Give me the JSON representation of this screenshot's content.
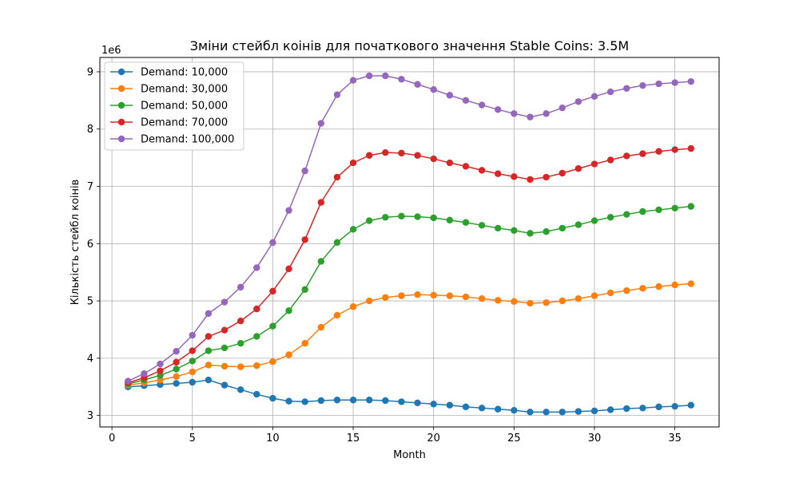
{
  "chart_data": {
    "type": "line",
    "title": "Зміни стейбл коінів для початкового значення Stable Coins: 3.5M",
    "xlabel": "Month",
    "ylabel": "Кількість стейбл коінів",
    "y_scale_label": "1e6",
    "xlim": [
      -0.75,
      37.75
    ],
    "ylim": [
      2.8,
      9.25
    ],
    "x_ticks": [
      0,
      5,
      10,
      15,
      20,
      25,
      30,
      35
    ],
    "y_ticks": [
      3,
      4,
      5,
      6,
      7,
      8,
      9
    ],
    "grid": true,
    "legend_position": "upper-left",
    "x": [
      1,
      2,
      3,
      4,
      5,
      6,
      7,
      8,
      9,
      10,
      11,
      12,
      13,
      14,
      15,
      16,
      17,
      18,
      19,
      20,
      21,
      22,
      23,
      24,
      25,
      26,
      27,
      28,
      29,
      30,
      31,
      32,
      33,
      34,
      35,
      36
    ],
    "series": [
      {
        "name": "Demand: 10,000",
        "color": "#1f77b4",
        "values": [
          3.5,
          3.52,
          3.54,
          3.56,
          3.58,
          3.62,
          3.53,
          3.45,
          3.37,
          3.3,
          3.25,
          3.24,
          3.26,
          3.27,
          3.27,
          3.27,
          3.26,
          3.24,
          3.22,
          3.2,
          3.18,
          3.15,
          3.13,
          3.11,
          3.09,
          3.06,
          3.06,
          3.06,
          3.07,
          3.08,
          3.1,
          3.12,
          3.13,
          3.15,
          3.16,
          3.18
        ]
      },
      {
        "name": "Demand: 30,000",
        "color": "#ff7f0e",
        "values": [
          3.53,
          3.57,
          3.62,
          3.68,
          3.76,
          3.88,
          3.86,
          3.85,
          3.87,
          3.94,
          4.06,
          4.26,
          4.54,
          4.75,
          4.9,
          5.0,
          5.06,
          5.09,
          5.11,
          5.1,
          5.09,
          5.07,
          5.04,
          5.01,
          4.99,
          4.96,
          4.97,
          5.0,
          5.04,
          5.09,
          5.14,
          5.18,
          5.22,
          5.25,
          5.28,
          5.3
        ]
      },
      {
        "name": "Demand: 50,000",
        "color": "#2ca02c",
        "values": [
          3.55,
          3.62,
          3.7,
          3.81,
          3.95,
          4.13,
          4.18,
          4.26,
          4.38,
          4.56,
          4.83,
          5.2,
          5.69,
          6.02,
          6.25,
          6.4,
          6.46,
          6.48,
          6.47,
          6.45,
          6.41,
          6.37,
          6.32,
          6.27,
          6.23,
          6.18,
          6.21,
          6.27,
          6.33,
          6.4,
          6.46,
          6.51,
          6.56,
          6.59,
          6.62,
          6.65
        ]
      },
      {
        "name": "Demand: 70,000",
        "color": "#d62728",
        "values": [
          3.57,
          3.66,
          3.78,
          3.93,
          4.13,
          4.38,
          4.49,
          4.65,
          4.86,
          5.17,
          5.56,
          6.07,
          6.72,
          7.16,
          7.41,
          7.54,
          7.59,
          7.58,
          7.54,
          7.48,
          7.41,
          7.35,
          7.28,
          7.22,
          7.17,
          7.12,
          7.16,
          7.23,
          7.31,
          7.39,
          7.46,
          7.53,
          7.57,
          7.61,
          7.64,
          7.66
        ]
      },
      {
        "name": "Demand: 100,000",
        "color": "#9467bd",
        "values": [
          3.6,
          3.73,
          3.9,
          4.12,
          4.4,
          4.78,
          4.98,
          5.24,
          5.58,
          6.02,
          6.58,
          7.27,
          8.1,
          8.6,
          8.85,
          8.93,
          8.93,
          8.87,
          8.78,
          8.69,
          8.59,
          8.5,
          8.42,
          8.34,
          8.27,
          8.21,
          8.27,
          8.37,
          8.48,
          8.57,
          8.65,
          8.71,
          8.76,
          8.79,
          8.81,
          8.83
        ]
      }
    ]
  }
}
